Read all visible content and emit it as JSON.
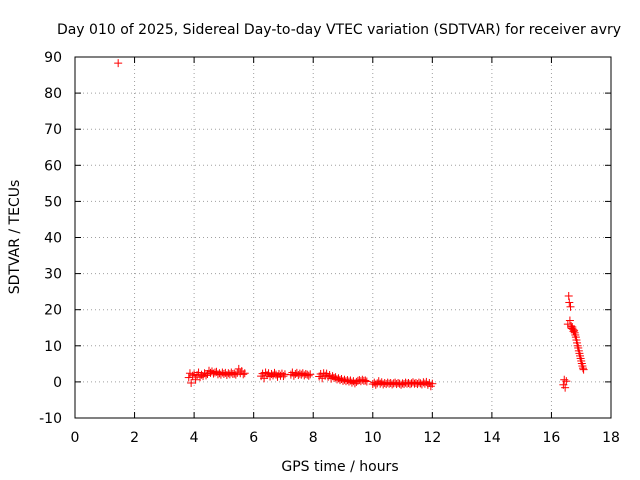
{
  "chart_data": {
    "type": "scatter",
    "title": "Day 010 of 2025, Sidereal Day-to-day VTEC variation (SDTVAR) for receiver avry",
    "xlabel": "GPS time / hours",
    "ylabel": "SDTVAR / TECUs",
    "xlim": [
      0,
      18
    ],
    "ylim": [
      -10,
      90
    ],
    "xticks": [
      0,
      2,
      4,
      6,
      8,
      10,
      12,
      14,
      16,
      18
    ],
    "yticks": [
      -10,
      0,
      10,
      20,
      30,
      40,
      50,
      60,
      70,
      80,
      90
    ],
    "grid": true,
    "marker": "+",
    "marker_color": "#ff0000",
    "series": [
      {
        "name": "SDTVAR",
        "points": [
          [
            1.45,
            88.3
          ],
          [
            3.82,
            1.2
          ],
          [
            3.86,
            2.4
          ],
          [
            3.9,
            -0.3
          ],
          [
            3.95,
            1.7
          ],
          [
            4.0,
            2.1
          ],
          [
            4.05,
            0.6
          ],
          [
            4.1,
            1.9
          ],
          [
            4.15,
            2.6
          ],
          [
            4.2,
            1.3
          ],
          [
            4.25,
            2.0
          ],
          [
            4.3,
            1.6
          ],
          [
            4.35,
            2.4
          ],
          [
            4.4,
            1.8
          ],
          [
            4.45,
            2.2
          ],
          [
            4.5,
            3.1
          ],
          [
            4.55,
            2.5
          ],
          [
            4.6,
            2.9
          ],
          [
            4.65,
            2.3
          ],
          [
            4.7,
            2.6
          ],
          [
            4.75,
            2.8
          ],
          [
            4.8,
            2.1
          ],
          [
            4.85,
            2.4
          ],
          [
            4.9,
            2.0
          ],
          [
            4.95,
            2.6
          ],
          [
            5.0,
            2.2
          ],
          [
            5.05,
            2.5
          ],
          [
            5.1,
            1.9
          ],
          [
            5.15,
            2.4
          ],
          [
            5.2,
            2.1
          ],
          [
            5.25,
            2.6
          ],
          [
            5.3,
            2.2
          ],
          [
            5.35,
            2.3
          ],
          [
            5.4,
            2.0
          ],
          [
            5.45,
            2.5
          ],
          [
            5.5,
            3.6
          ],
          [
            5.55,
            2.4
          ],
          [
            5.6,
            3.0
          ],
          [
            5.65,
            2.1
          ],
          [
            5.7,
            2.4
          ],
          [
            6.25,
            1.6
          ],
          [
            6.3,
            2.3
          ],
          [
            6.35,
            1.0
          ],
          [
            6.4,
            2.6
          ],
          [
            6.45,
            1.9
          ],
          [
            6.5,
            2.4
          ],
          [
            6.55,
            1.5
          ],
          [
            6.6,
            2.2
          ],
          [
            6.65,
            1.8
          ],
          [
            6.7,
            2.5
          ],
          [
            6.75,
            2.0
          ],
          [
            6.8,
            1.4
          ],
          [
            6.85,
            2.2
          ],
          [
            6.9,
            1.7
          ],
          [
            6.95,
            2.3
          ],
          [
            7.0,
            1.6
          ],
          [
            7.05,
            2.1
          ],
          [
            7.25,
            2.0
          ],
          [
            7.3,
            2.6
          ],
          [
            7.35,
            1.7
          ],
          [
            7.4,
            2.2
          ],
          [
            7.45,
            2.5
          ],
          [
            7.5,
            1.9
          ],
          [
            7.55,
            2.3
          ],
          [
            7.6,
            2.0
          ],
          [
            7.65,
            2.4
          ],
          [
            7.7,
            1.8
          ],
          [
            7.75,
            2.2
          ],
          [
            7.8,
            2.0
          ],
          [
            7.85,
            1.7
          ],
          [
            7.9,
            2.1
          ],
          [
            8.2,
            1.5
          ],
          [
            8.25,
            2.2
          ],
          [
            8.3,
            1.0
          ],
          [
            8.35,
            2.4
          ],
          [
            8.4,
            1.7
          ],
          [
            8.45,
            2.3
          ],
          [
            8.5,
            1.4
          ],
          [
            8.55,
            1.9
          ],
          [
            8.6,
            0.9
          ],
          [
            8.65,
            1.6
          ],
          [
            8.7,
            1.1
          ],
          [
            8.75,
            1.3
          ],
          [
            8.8,
            0.7
          ],
          [
            8.85,
            1.0
          ],
          [
            8.9,
            0.5
          ],
          [
            8.95,
            0.8
          ],
          [
            9.0,
            0.3
          ],
          [
            9.05,
            0.6
          ],
          [
            9.1,
            0.2
          ],
          [
            9.15,
            0.5
          ],
          [
            9.2,
            0.1
          ],
          [
            9.25,
            0.4
          ],
          [
            9.3,
            -0.2
          ],
          [
            9.35,
            0.2
          ],
          [
            9.4,
            -0.4
          ],
          [
            9.45,
            0.0
          ],
          [
            9.5,
            0.3
          ],
          [
            9.55,
            0.5
          ],
          [
            9.6,
            0.2
          ],
          [
            9.65,
            0.6
          ],
          [
            9.7,
            0.3
          ],
          [
            9.75,
            0.4
          ],
          [
            9.8,
            0.1
          ],
          [
            10.0,
            -0.6
          ],
          [
            10.05,
            -0.2
          ],
          [
            10.1,
            -0.8
          ],
          [
            10.15,
            -0.4
          ],
          [
            10.2,
            0.2
          ],
          [
            10.25,
            -0.5
          ],
          [
            10.3,
            -0.1
          ],
          [
            10.35,
            -0.7
          ],
          [
            10.4,
            -0.3
          ],
          [
            10.45,
            -0.6
          ],
          [
            10.5,
            -0.2
          ],
          [
            10.55,
            -0.5
          ],
          [
            10.6,
            -0.3
          ],
          [
            10.65,
            -0.7
          ],
          [
            10.7,
            -0.4
          ],
          [
            10.75,
            -0.2
          ],
          [
            10.8,
            -0.6
          ],
          [
            10.85,
            -0.3
          ],
          [
            10.9,
            -0.5
          ],
          [
            10.95,
            -0.8
          ],
          [
            11.0,
            -0.4
          ],
          [
            11.05,
            -0.6
          ],
          [
            11.1,
            -0.2
          ],
          [
            11.15,
            -0.5
          ],
          [
            11.2,
            -0.3
          ],
          [
            11.25,
            -0.6
          ],
          [
            11.3,
            -0.4
          ],
          [
            11.35,
            -0.1
          ],
          [
            11.4,
            -0.5
          ],
          [
            11.45,
            -0.3
          ],
          [
            11.5,
            -0.6
          ],
          [
            11.55,
            -0.2
          ],
          [
            11.6,
            -0.4
          ],
          [
            11.65,
            -0.7
          ],
          [
            11.7,
            -0.1
          ],
          [
            11.75,
            -0.5
          ],
          [
            11.8,
            0.0
          ],
          [
            11.85,
            -0.8
          ],
          [
            11.9,
            -0.3
          ],
          [
            11.95,
            -1.2
          ],
          [
            12.0,
            -0.5
          ],
          [
            16.4,
            -0.8
          ],
          [
            16.43,
            0.6
          ],
          [
            16.46,
            -1.6
          ],
          [
            16.5,
            0.2
          ],
          [
            16.55,
            16.0
          ],
          [
            16.58,
            23.8
          ],
          [
            16.6,
            22.0
          ],
          [
            16.62,
            17.0
          ],
          [
            16.64,
            20.8
          ],
          [
            16.66,
            15.5
          ],
          [
            16.68,
            14.8
          ],
          [
            16.7,
            15.2
          ],
          [
            16.72,
            14.6
          ],
          [
            16.74,
            14.0
          ],
          [
            16.76,
            14.3
          ],
          [
            16.78,
            13.6
          ],
          [
            16.8,
            13.0
          ],
          [
            16.82,
            12.4
          ],
          [
            16.84,
            11.6
          ],
          [
            16.86,
            10.8
          ],
          [
            16.88,
            10.0
          ],
          [
            16.9,
            9.4
          ],
          [
            16.92,
            8.6
          ],
          [
            16.94,
            7.9
          ],
          [
            16.96,
            7.2
          ],
          [
            16.98,
            6.5
          ],
          [
            17.0,
            5.8
          ],
          [
            17.02,
            5.1
          ],
          [
            17.04,
            4.4
          ],
          [
            17.06,
            3.8
          ],
          [
            17.08,
            3.4
          ]
        ]
      }
    ]
  }
}
